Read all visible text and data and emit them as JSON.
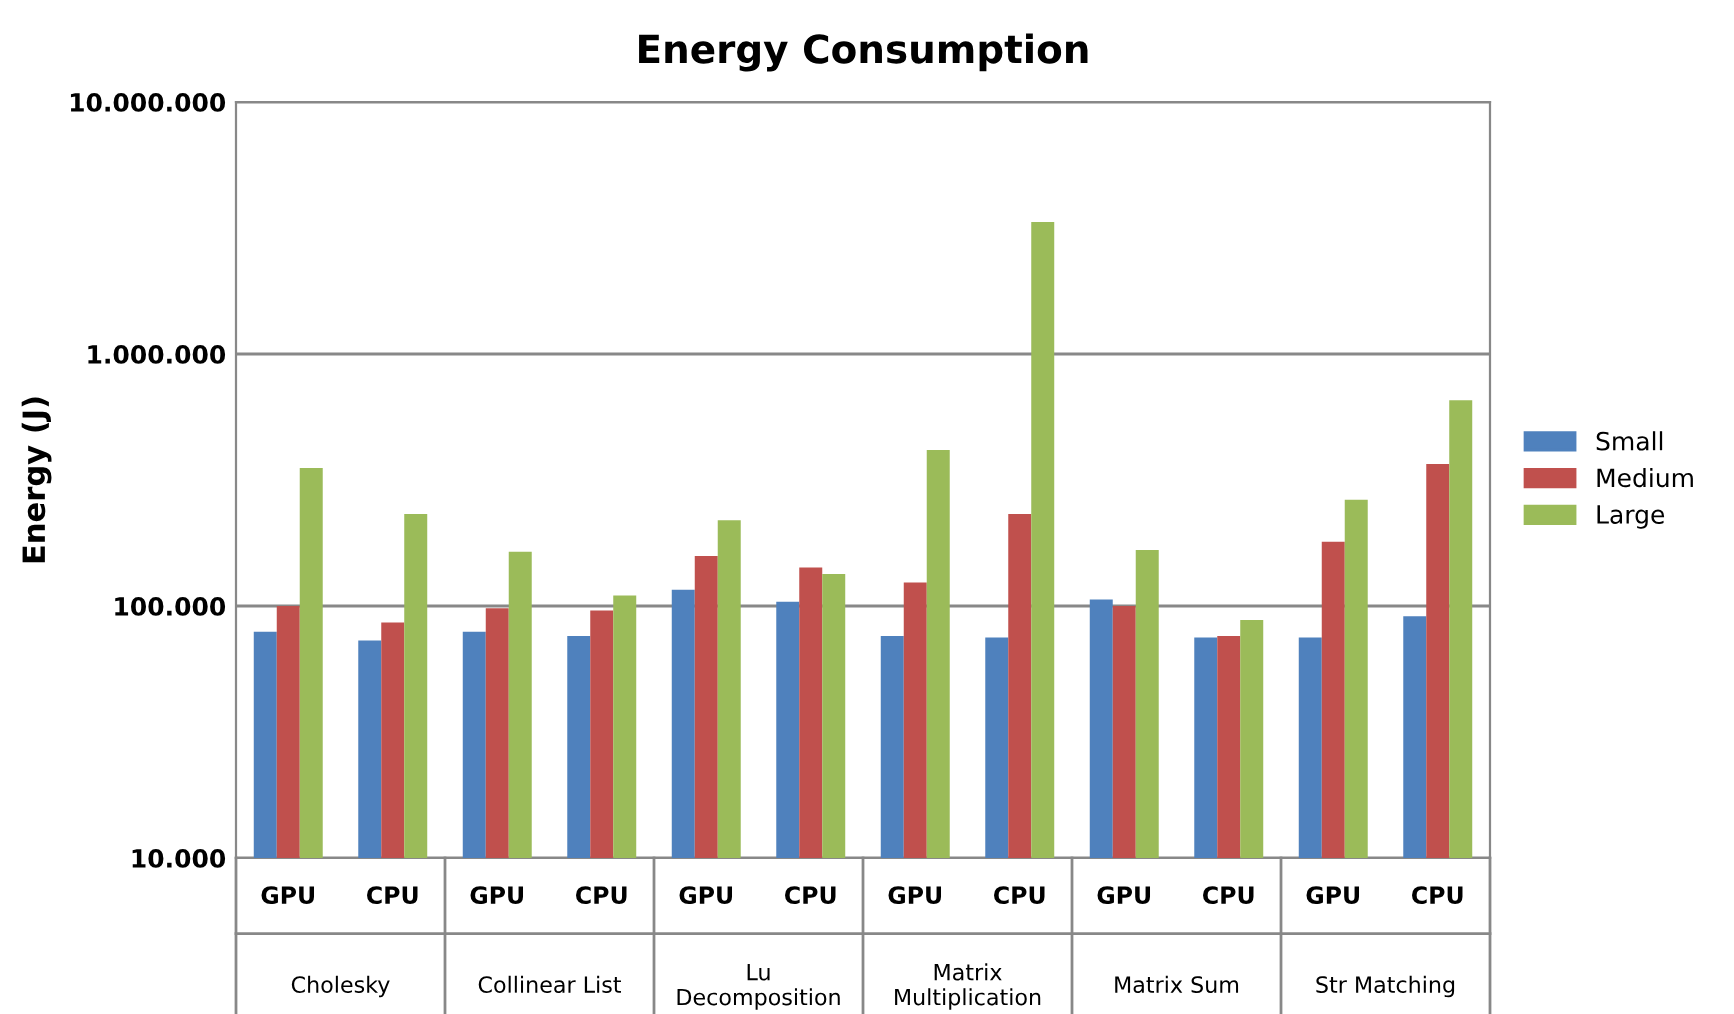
{
  "chart_data": {
    "type": "bar",
    "title": "Energy Consumption",
    "ylabel": "Energy (J)",
    "categories": [
      "GPU",
      "CPU",
      "GPU",
      "CPU",
      "GPU",
      "CPU",
      "GPU",
      "CPU",
      "GPU",
      "CPU",
      "GPU",
      "CPU"
    ],
    "annotations": [
      "Cholesky",
      "Collinear List",
      "Lu\nDecomposition",
      "Matrix\nMultiplication",
      "Matrix Sum",
      "Str Matching"
    ],
    "series": [
      {
        "name": "Small",
        "color": "#4f81bd",
        "values": [
          79000,
          73000,
          79000,
          76000,
          116000,
          104000,
          76000,
          75000,
          106000,
          75000,
          75000,
          91000
        ]
      },
      {
        "name": "Medium",
        "color": "#c0504d",
        "values": [
          100000,
          86000,
          98000,
          96000,
          158000,
          142000,
          124000,
          232000,
          100000,
          76000,
          180000,
          366000
        ]
      },
      {
        "name": "Large",
        "color": "#9bbb59",
        "values": [
          353000,
          232000,
          164000,
          110000,
          219000,
          134000,
          416000,
          3340000,
          167000,
          88000,
          264000,
          656000
        ]
      }
    ],
    "log": "y",
    "ylim": [
      10000,
      10000000
    ],
    "yticks": [
      {
        "value": 10000,
        "label": "10.000"
      },
      {
        "value": 100000,
        "label": "100.000"
      },
      {
        "value": 1000000,
        "label": "1.000.000"
      },
      {
        "value": 10000000,
        "label": "10.000.000"
      }
    ],
    "grid": "y",
    "legend": "right"
  }
}
